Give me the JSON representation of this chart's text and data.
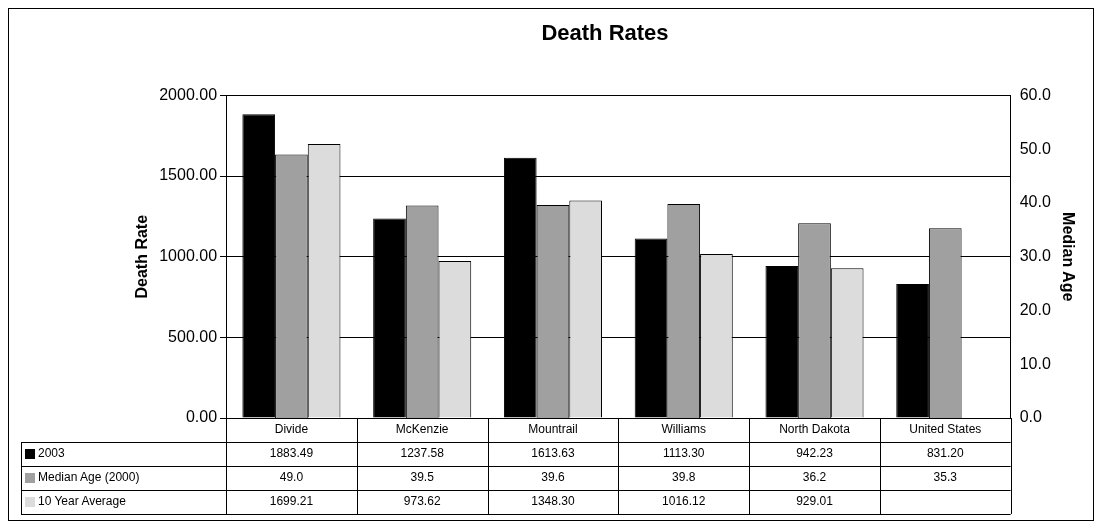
{
  "chart_data": {
    "type": "bar",
    "title": "Death Rates",
    "ylabel": "Death Rate",
    "y2label": "Median Age",
    "categories": [
      "Divide",
      "McKenzie",
      "Mountrail",
      "Williams",
      "North Dakota",
      "United States"
    ],
    "series": [
      {
        "name": "2003",
        "color": "#000000",
        "values": [
          1883.49,
          1237.58,
          1613.63,
          1113.3,
          942.23,
          831.2
        ],
        "value_labels": [
          "1883.49",
          "1237.58",
          "1613.63",
          "1113.30",
          "942.23",
          "831.20"
        ]
      },
      {
        "name": "Median Age (2000)",
        "color": "#a0a0a0",
        "axis": "y2",
        "values": [
          49.0,
          39.5,
          39.6,
          39.8,
          36.2,
          35.3
        ],
        "value_labels": [
          "49.0",
          "39.5",
          "39.6",
          "39.8",
          "36.2",
          "35.3"
        ]
      },
      {
        "name": "10 Year Average",
        "color": "#dcdcdc",
        "values": [
          1699.21,
          973.62,
          1348.3,
          1016.12,
          929.01,
          null
        ],
        "value_labels": [
          "1699.21",
          "973.62",
          "1348.30",
          "1016.12",
          "929.01",
          null
        ]
      }
    ],
    "ylim": [
      0,
      2000
    ],
    "yticks": [
      {
        "value": 0,
        "label": "0.00"
      },
      {
        "value": 500,
        "label": "500.00"
      },
      {
        "value": 1000,
        "label": "1000.00"
      },
      {
        "value": 1500,
        "label": "1500.00"
      },
      {
        "value": 2000,
        "label": "2000.00"
      }
    ],
    "y2lim": [
      0,
      60
    ],
    "y2ticks": [
      {
        "value": 0,
        "label": "0.0"
      },
      {
        "value": 10,
        "label": "10.0"
      },
      {
        "value": 20,
        "label": "20.0"
      },
      {
        "value": 30,
        "label": "30.0"
      },
      {
        "value": 40,
        "label": "40.0"
      },
      {
        "value": 50,
        "label": "50.0"
      },
      {
        "value": 60,
        "label": "60.0"
      }
    ],
    "grid": "y",
    "legend": "bottom"
  }
}
